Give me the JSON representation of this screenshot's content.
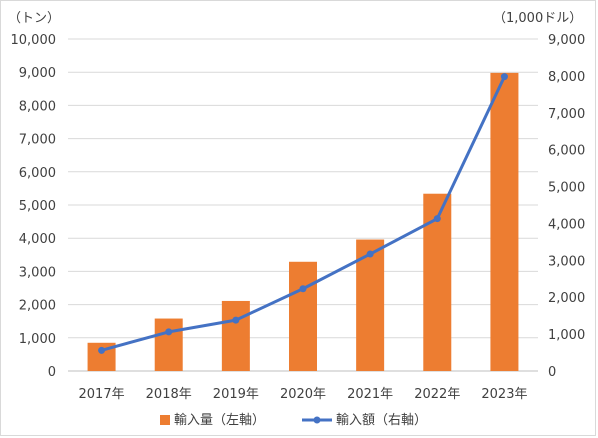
{
  "chart_data": {
    "type": "bar",
    "title": "",
    "left_unit": "（トン）",
    "right_unit": "（1,000ドル）",
    "categories": [
      "2017年",
      "2018年",
      "2019年",
      "2020年",
      "2021年",
      "2022年",
      "2023年"
    ],
    "series": [
      {
        "name": "輸入量（左軸）",
        "type": "bar",
        "axis": "left",
        "color": "#ED7D31",
        "values": [
          850,
          1580,
          2110,
          3290,
          3960,
          5340,
          8980
        ]
      },
      {
        "name": "輸入額（右軸）",
        "type": "line",
        "axis": "right",
        "color": "#4472C4",
        "values": [
          560,
          1060,
          1380,
          2230,
          3170,
          4130,
          7980
        ]
      }
    ],
    "left_axis": {
      "ylim": [
        0,
        10000
      ],
      "ticks": [
        "0",
        "1,000",
        "2,000",
        "3,000",
        "4,000",
        "5,000",
        "6,000",
        "7,000",
        "8,000",
        "9,000",
        "10,000"
      ]
    },
    "right_axis": {
      "ylim": [
        0,
        9000
      ],
      "ticks": [
        "0",
        "1,000",
        "2,000",
        "3,000",
        "4,000",
        "5,000",
        "6,000",
        "7,000",
        "8,000",
        "9,000"
      ]
    },
    "grid": true,
    "legend_position": "bottom"
  }
}
